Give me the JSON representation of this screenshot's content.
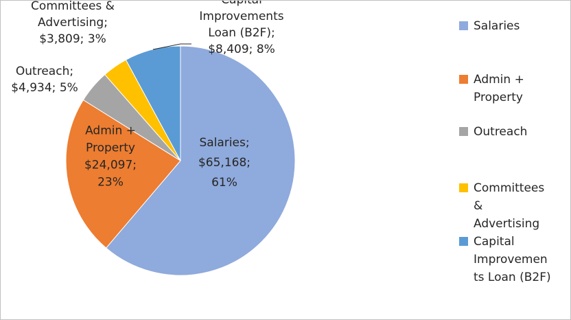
{
  "chart_data": {
    "type": "pie",
    "start_angle_deg": 0,
    "direction": "clockwise",
    "legend_position": "right",
    "slices": [
      {
        "name": "Salaries",
        "value": 65168,
        "percent": 61,
        "color": "#8faadc",
        "label_lines": [
          "Salaries;",
          "$65,168;",
          "61%"
        ]
      },
      {
        "name": "Admin + Property",
        "value": 24097,
        "percent": 23,
        "color": "#ed7d31",
        "label_lines": [
          "Admin +",
          "Property",
          "$24,097;",
          "23%"
        ]
      },
      {
        "name": "Outreach",
        "value": 4934,
        "percent": 5,
        "color": "#a5a5a5",
        "label_lines": [
          "Outreach;",
          "$4,934; 5%"
        ]
      },
      {
        "name": "Committees & Advertising",
        "value": 3809,
        "percent": 3,
        "color": "#ffc000",
        "label_lines": [
          "Committees &",
          "Advertising;",
          "$3,809; 3%"
        ]
      },
      {
        "name": "Capital Improvements Loan (B2F)",
        "value": 8409,
        "percent": 8,
        "color": "#5b9bd5",
        "label_lines": [
          "Capital",
          "Improvements",
          "Loan (B2F);",
          "$8,409; 8%"
        ]
      }
    ],
    "legend": [
      {
        "text": "Salaries",
        "color": "#8faadc"
      },
      {
        "text": "Admin +\nProperty",
        "color": "#ed7d31"
      },
      {
        "text": "Outreach",
        "color": "#a5a5a5"
      },
      {
        "text": "Committees\n&\nAdvertising",
        "color": "#ffc000"
      },
      {
        "text": "Capital\nImprovemen\nts Loan (B2F)",
        "color": "#5b9bd5"
      }
    ]
  }
}
